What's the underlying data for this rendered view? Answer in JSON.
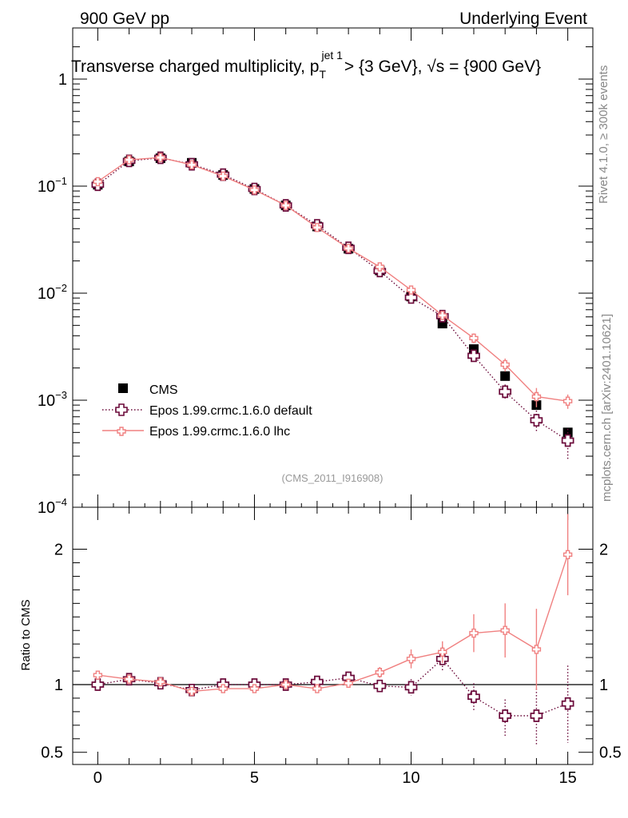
{
  "header": {
    "left": "900 GeV pp",
    "right": "Underlying Event",
    "title_main": "Transverse charged multiplicity, p",
    "title_sup": "jet 1",
    "title_sub": "T",
    "title_rest": " > {3 GeV}, √s = {900 GeV}",
    "side_top": "Rivet 4.1.0, ≥ 300k events",
    "side_bottom": "mcplots.cern.ch [arXiv:2401.10621]",
    "analysis_id": "(CMS_2011_I916908)"
  },
  "colors": {
    "cms": "#000000",
    "default": "#6b0a3a",
    "lhc": "#f08080"
  },
  "chart_data": [
    {
      "type": "scatter",
      "yscale": "log",
      "xlim": [
        -0.8,
        15.8
      ],
      "ylim": [
        0.0001,
        3.0
      ],
      "ytick_labels": [
        {
          "value": 1,
          "label": "1"
        },
        {
          "value": 0.1,
          "label": "10",
          "exp": "−1"
        },
        {
          "value": 0.01,
          "label": "10",
          "exp": "−2"
        },
        {
          "value": 0.001,
          "label": "10",
          "exp": "−3"
        },
        {
          "value": 0.0001,
          "label": "10",
          "exp": "−4"
        }
      ],
      "x": [
        0,
        1,
        2,
        3,
        4,
        5,
        6,
        7,
        8,
        9,
        10,
        11,
        12,
        13,
        14,
        15
      ],
      "series": [
        {
          "name": "CMS",
          "style": "square",
          "values": [
            0.103,
            0.17,
            0.182,
            0.165,
            0.127,
            0.094,
            0.066,
            0.042,
            0.026,
            0.0163,
            0.0093,
            0.0052,
            0.003,
            0.00168,
            0.0009,
            0.0005
          ]
        },
        {
          "name": "Epos 1.99.crmc.1.6.0 default",
          "style": "dotted-cross",
          "values": [
            0.103,
            0.172,
            0.184,
            0.16,
            0.128,
            0.094,
            0.066,
            0.043,
            0.0265,
            0.0161,
            0.0091,
            0.0061,
            0.0026,
            0.0012,
            0.00065,
            0.00042
          ],
          "err_low": [
            0,
            0,
            0,
            0,
            0,
            0,
            0,
            0,
            0,
            0,
            0,
            0,
            0.0002,
            0.0002,
            0.00015,
            0.00014
          ],
          "err_high": [
            0,
            0,
            0,
            0,
            0,
            0,
            0,
            0,
            0,
            0,
            0,
            0,
            0.0002,
            0.0002,
            0.00015,
            0.00012
          ]
        },
        {
          "name": "Epos 1.99.crmc.1.6.0 lhc",
          "style": "solid-cross",
          "values": [
            0.11,
            0.176,
            0.185,
            0.158,
            0.124,
            0.092,
            0.066,
            0.041,
            0.0262,
            0.0176,
            0.0107,
            0.0062,
            0.0038,
            0.00215,
            0.00108,
            0.00098
          ],
          "err_low": [
            0,
            0,
            0,
            0,
            0,
            0,
            0,
            0,
            0,
            0,
            0,
            0,
            0.0004,
            0.0003,
            0.00022,
            0.00015
          ],
          "err_high": [
            0,
            0,
            0,
            0,
            0,
            0,
            0,
            0,
            0,
            0,
            0,
            0,
            0.0004,
            0.0003,
            0.00022,
            0.00015
          ]
        }
      ]
    },
    {
      "type": "line",
      "ylabel": "Ratio to CMS",
      "xlim": [
        -0.8,
        15.8
      ],
      "ylim": [
        0.41,
        2.31
      ],
      "xtick_labels": [
        "0",
        "5",
        "10",
        "15"
      ],
      "ytick_labels": [
        "0.5",
        "1",
        "2"
      ],
      "x": [
        0,
        1,
        2,
        3,
        4,
        5,
        6,
        7,
        8,
        9,
        10,
        11,
        12,
        13,
        14,
        15
      ],
      "series": [
        {
          "name": "Epos 1.99.crmc.1.6.0 default",
          "style": "dotted-cross",
          "values": [
            1.0,
            1.04,
            1.01,
            0.96,
            1.0,
            1.0,
            1.0,
            1.02,
            1.05,
            0.99,
            0.98,
            1.19,
            0.91,
            0.77,
            0.77,
            0.86
          ],
          "err_low": [
            0,
            0,
            0,
            0,
            0,
            0,
            0,
            0,
            0,
            0,
            0.06,
            0.09,
            0.1,
            0.16,
            0.22,
            0.29
          ],
          "err_high": [
            0,
            0,
            0,
            0,
            0,
            0,
            0,
            0,
            0,
            0,
            0.06,
            0.09,
            0.1,
            0.12,
            0.2,
            0.28
          ]
        },
        {
          "name": "Epos 1.99.crmc.1.6.0 lhc",
          "style": "solid-cross",
          "values": [
            1.07,
            1.04,
            1.02,
            0.95,
            0.97,
            0.97,
            1.0,
            0.97,
            1.01,
            1.09,
            1.19,
            1.24,
            1.38,
            1.4,
            1.26,
            1.96
          ],
          "err_low": [
            0,
            0,
            0,
            0,
            0,
            0.02,
            0.02,
            0.02,
            0.02,
            0.04,
            0.07,
            0.08,
            0.14,
            0.2,
            0.3,
            0.3
          ],
          "err_high": [
            0,
            0,
            0,
            0,
            0,
            0.02,
            0.02,
            0.02,
            0.02,
            0.04,
            0.07,
            0.08,
            0.14,
            0.2,
            0.3,
            0.3
          ]
        }
      ]
    }
  ]
}
